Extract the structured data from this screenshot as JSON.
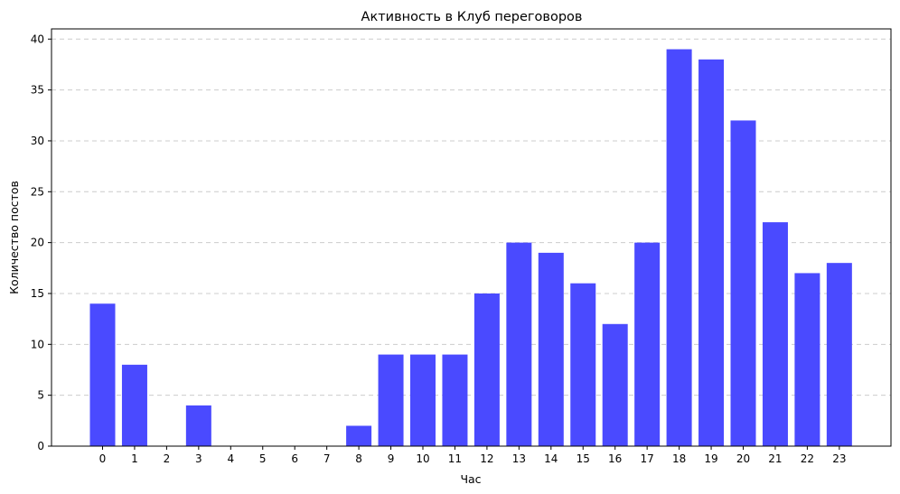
{
  "chart_data": {
    "type": "bar",
    "title": "Активность в Клуб переговоров",
    "xlabel": "Час",
    "ylabel": "Количество постов",
    "categories": [
      "0",
      "1",
      "2",
      "3",
      "4",
      "5",
      "6",
      "7",
      "8",
      "9",
      "10",
      "11",
      "12",
      "13",
      "14",
      "15",
      "16",
      "17",
      "18",
      "19",
      "20",
      "21",
      "22",
      "23"
    ],
    "values": [
      14,
      8,
      0,
      4,
      0,
      0,
      0,
      0,
      2,
      9,
      9,
      9,
      15,
      20,
      19,
      16,
      12,
      20,
      39,
      38,
      32,
      22,
      17,
      18
    ],
    "ylim": [
      0,
      41
    ],
    "yticks": [
      0,
      5,
      10,
      15,
      20,
      25,
      30,
      35,
      40
    ],
    "grid": "y-dashed",
    "bar_color": "#4a4aff",
    "legend": "none"
  }
}
